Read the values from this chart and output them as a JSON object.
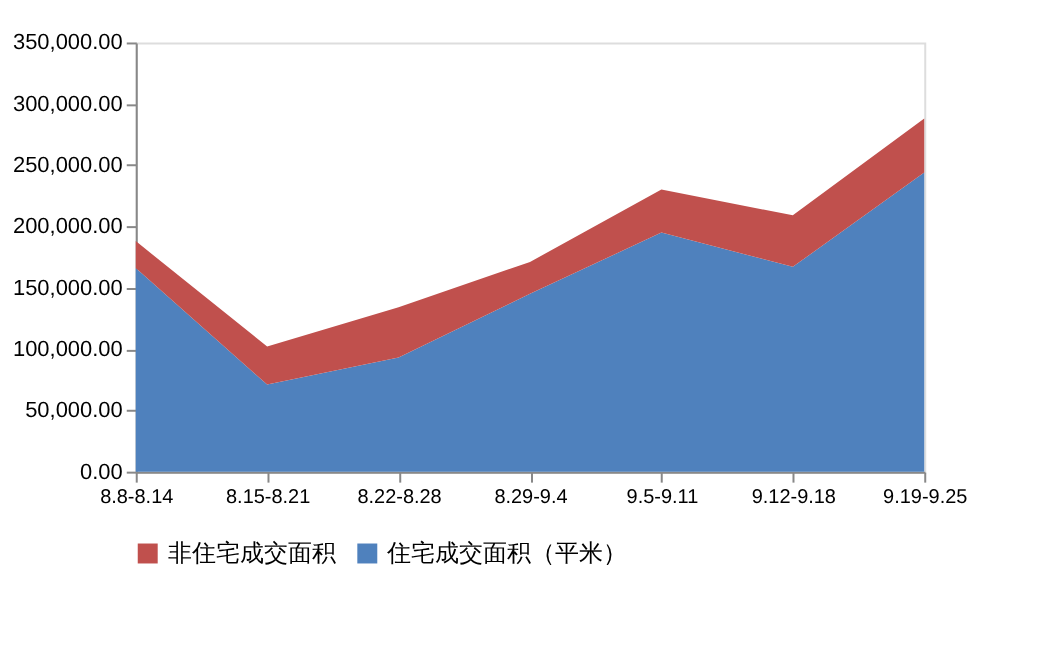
{
  "chart_data": {
    "type": "area",
    "stacked": true,
    "categories": [
      "8.8-8.14",
      "8.15-8.21",
      "8.22-8.28",
      "8.29-9.4",
      "9.5-9.11",
      "9.12-9.18",
      "9.19-9.25"
    ],
    "series": [
      {
        "name": "住宅成交面积（平米）",
        "color": "#4f81bd",
        "values": [
          166000,
          71000,
          93000,
          145000,
          195000,
          167000,
          244000
        ]
      },
      {
        "name": "非住宅成交面积",
        "color": "#c0504d",
        "values": [
          22000,
          31000,
          41000,
          26000,
          35000,
          42000,
          44000
        ]
      }
    ],
    "ylim": [
      0,
      350000
    ],
    "yticks": [
      {
        "value": 0,
        "label": "0.00"
      },
      {
        "value": 50000,
        "label": "50,000.00"
      },
      {
        "value": 100000,
        "label": "100,000.00"
      },
      {
        "value": 150000,
        "label": "150,000.00"
      },
      {
        "value": 200000,
        "label": "200,000.00"
      },
      {
        "value": 250000,
        "label": "250,000.00"
      },
      {
        "value": 300000,
        "label": "300,000.00"
      },
      {
        "value": 350000,
        "label": "350,000.00"
      }
    ],
    "grid": false,
    "legend": "bottom"
  }
}
